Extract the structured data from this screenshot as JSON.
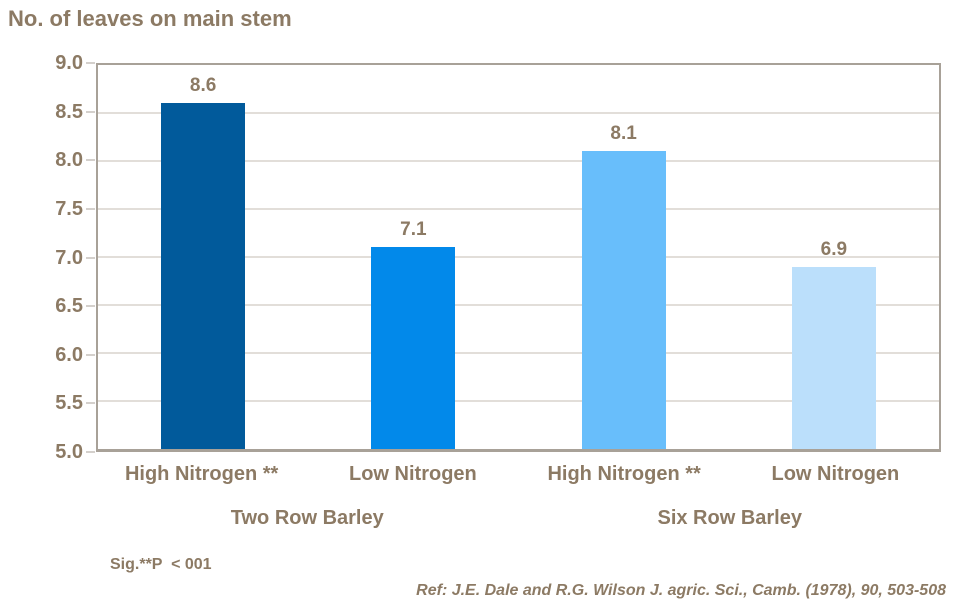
{
  "page": {
    "title": "No. of leaves on main stem",
    "footnote": "Sig.**P  < 001",
    "reference": "Ref: J.E. Dale and R.G. Wilson J. agric. Sci., Camb. (1978), 90, 503-508"
  },
  "colors": {
    "text": "#8c7a64",
    "gridline": "#c6beb3",
    "frame": "#a8a198",
    "background": "#ffffff"
  },
  "chart_data": {
    "type": "bar",
    "title": "No. of leaves on main stem",
    "categories": [
      "High Nitrogen **",
      "Low Nitrogen",
      "High Nitrogen **",
      "Low Nitrogen"
    ],
    "group_labels": [
      "Two Row Barley",
      "Six Row Barley"
    ],
    "series": [
      {
        "name": "No. of leaves on main stem",
        "values": [
          8.6,
          7.1,
          8.1,
          6.9
        ]
      }
    ],
    "data_labels": [
      "8.6",
      "7.1",
      "8.1",
      "6.9"
    ],
    "bar_colors": [
      "#015a9b",
      "#0289ea",
      "#68befb",
      "#bbdffb"
    ],
    "ylim": [
      5.0,
      9.0
    ],
    "ytick_step": 0.5,
    "yticks": [
      "9.0",
      "8.5",
      "8.0",
      "7.5",
      "7.0",
      "6.5",
      "6.0",
      "5.5",
      "5.0"
    ],
    "xlabel": "",
    "ylabel": "No. of leaves on main stem",
    "grid": true,
    "legend_position": "none",
    "annotations": [
      "Sig.**P  < 001",
      "Ref: J.E. Dale and R.G. Wilson J. agric. Sci., Camb. (1978), 90, 503-508"
    ]
  }
}
